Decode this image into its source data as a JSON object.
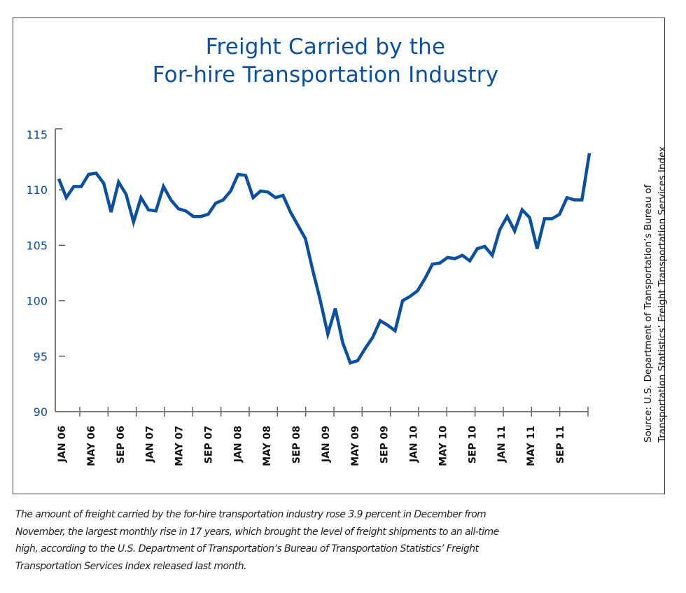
{
  "chart_data": {
    "type": "line",
    "title": [
      "Freight Carried by the",
      "For-hire Transportation Industry"
    ],
    "xlabel": "",
    "ylabel": "",
    "ylim": [
      90,
      115
    ],
    "yticks": [
      90,
      95,
      100,
      105,
      110,
      115
    ],
    "xtick_labels": [
      "JAN 06",
      "MAY 06",
      "SEP 06",
      "JAN 07",
      "MAY 07",
      "SEP 07",
      "JAN 08",
      "MAY 08",
      "SEP 08",
      "JAN 09",
      "MAY 09",
      "SEP 09",
      "JAN 10",
      "MAY 10",
      "SEP 10",
      "JAN 11",
      "MAY 11",
      "SEP 11"
    ],
    "grid": false,
    "legend": "none",
    "series": [
      {
        "name": "Freight Transportation Services Index",
        "color": "#0b4fa0",
        "start": "JAN 06",
        "end": "DEC 11",
        "frequency": "monthly",
        "values": [
          111.0,
          109.3,
          110.3,
          110.3,
          111.4,
          111.5,
          110.6,
          108.0,
          110.7,
          109.6,
          107.1,
          109.3,
          108.2,
          108.1,
          110.3,
          109.1,
          108.3,
          108.1,
          107.6,
          107.6,
          107.8,
          108.8,
          109.1,
          109.9,
          111.4,
          111.3,
          109.3,
          109.9,
          109.8,
          109.3,
          109.5,
          108.0,
          106.8,
          105.6,
          102.7,
          100.0,
          97.0,
          99.3,
          96.2,
          94.4,
          94.6,
          95.7,
          96.7,
          98.2,
          97.8,
          97.3,
          100.0,
          100.4,
          100.9,
          102.0,
          103.3,
          103.4,
          103.9,
          103.8,
          104.1,
          103.6,
          104.7,
          104.9,
          104.1,
          106.4,
          107.6,
          106.3,
          108.2,
          107.5,
          104.7,
          107.4,
          107.4,
          107.8,
          109.3,
          109.1,
          109.1,
          113.3
        ]
      }
    ],
    "source_note": [
      "Source: U.S. Department of Transportation’s Bureau of",
      "Transportation Statistics’ Freight Transportation Services Index"
    ]
  },
  "caption": [
    "The amount of freight carried by the for-hire transportation industry rose 3.9 percent in December from",
    "November, the largest monthly rise in 17 years, which brought the level of freight shipments to an all-time",
    "high, according to the U.S. Department of Transportation’s Bureau of Transportation Statistics’ Freight",
    "Transportation Services Index released last month."
  ]
}
